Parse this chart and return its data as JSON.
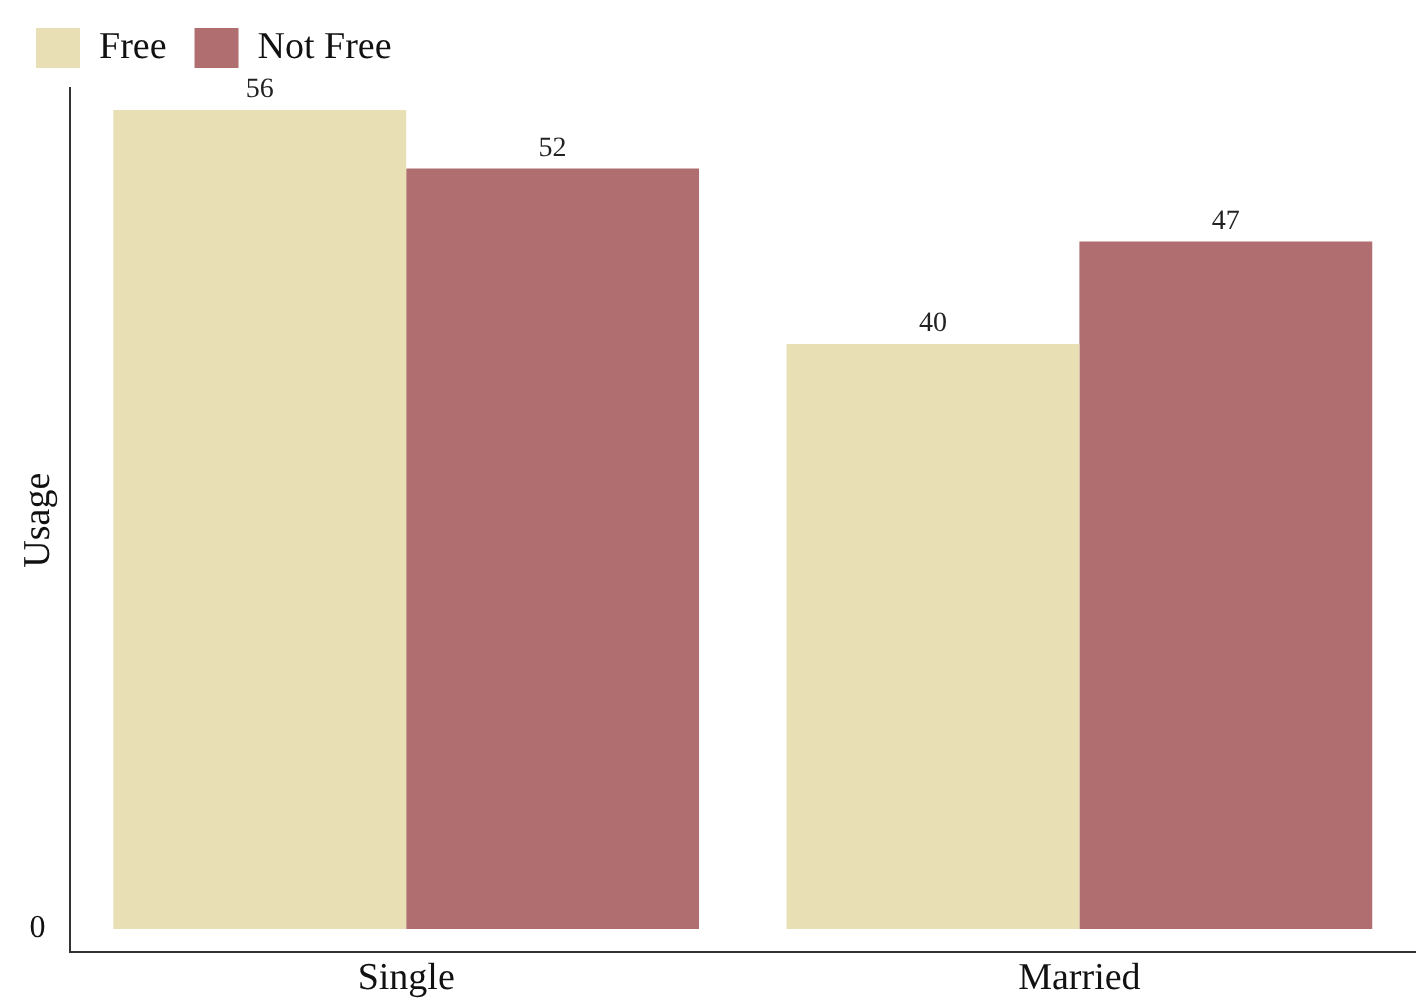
{
  "chart_data": {
    "type": "bar",
    "ylabel": "Usage",
    "categories": [
      "Single",
      "Married"
    ],
    "series": [
      {
        "name": "Free",
        "color": "#e8dfb5",
        "values": [
          56,
          40
        ]
      },
      {
        "name": "Not Free",
        "color": "#b06e70",
        "values": [
          52,
          47
        ]
      }
    ],
    "ylim": [
      -1.6,
      57.5
    ],
    "annotations": [
      "0"
    ],
    "data_labels": true,
    "grid": false,
    "legend": "top left"
  }
}
